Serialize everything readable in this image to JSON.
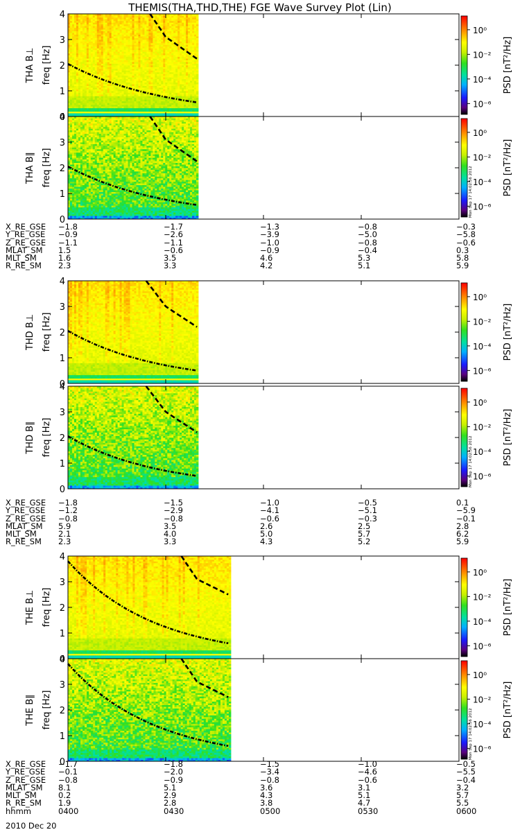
{
  "title": "THEMIS(THA,THD,THE) FGE Wave Survey Plot (Lin)",
  "colorbar": {
    "label": "PSD [nT²/Hz]",
    "ticks": [
      "10⁰",
      "10⁻²",
      "10⁻⁴",
      "10⁻⁶"
    ],
    "stamp": "Mon Sep 17 14:02:56 2012"
  },
  "chart_data": [
    {
      "type": "heatmap",
      "probe": "THA",
      "component": "B⊥",
      "ylabel": "THA B⊥",
      "ylabel2": "freq [Hz]",
      "ylim": [
        0,
        4
      ],
      "yticks": [
        "0",
        "1",
        "2",
        "3",
        "4"
      ],
      "data_end_time": "0440",
      "curves": [
        {
          "style": "dashed",
          "x": [
            0.21,
            0.25,
            0.33
          ],
          "y": [
            4,
            3.1,
            2.25
          ]
        },
        {
          "style": "dashdot",
          "x": [
            0,
            0.33
          ],
          "y": [
            2.05,
            0.55
          ]
        }
      ]
    },
    {
      "type": "heatmap",
      "probe": "THA",
      "component": "B∥",
      "ylabel": "THA B∥",
      "ylabel2": "freq [Hz]",
      "ylim": [
        0,
        4
      ],
      "yticks": [
        "0",
        "1",
        "2",
        "3",
        "4"
      ],
      "data_end_time": "0440",
      "curves": [
        {
          "style": "dashed",
          "x": [
            0.21,
            0.25,
            0.33
          ],
          "y": [
            4,
            3.1,
            2.25
          ]
        },
        {
          "style": "dashdot",
          "x": [
            0,
            0.33
          ],
          "y": [
            2.05,
            0.55
          ]
        }
      ]
    },
    {
      "type": "heatmap",
      "probe": "THD",
      "component": "B⊥",
      "ylabel": "THD B⊥",
      "ylabel2": "freq [Hz]",
      "ylim": [
        0,
        4
      ],
      "yticks": [
        "0",
        "1",
        "2",
        "3",
        "4"
      ],
      "data_end_time": "0440",
      "curves": [
        {
          "style": "dashed",
          "x": [
            0.2,
            0.25,
            0.33
          ],
          "y": [
            4,
            3.0,
            2.2
          ]
        },
        {
          "style": "dashdot",
          "x": [
            0,
            0.33
          ],
          "y": [
            2.05,
            0.5
          ]
        }
      ]
    },
    {
      "type": "heatmap",
      "probe": "THD",
      "component": "B∥",
      "ylabel": "THD B∥",
      "ylabel2": "freq [Hz]",
      "ylim": [
        0,
        4
      ],
      "yticks": [
        "0",
        "1",
        "2",
        "3",
        "4"
      ],
      "data_end_time": "0440",
      "curves": [
        {
          "style": "dashed",
          "x": [
            0.2,
            0.25,
            0.33
          ],
          "y": [
            4,
            3.0,
            2.2
          ]
        },
        {
          "style": "dashdot",
          "x": [
            0,
            0.33
          ],
          "y": [
            2.05,
            0.5
          ]
        }
      ]
    },
    {
      "type": "heatmap",
      "probe": "THE",
      "component": "B⊥",
      "ylabel": "THE B⊥",
      "ylabel2": "freq [Hz]",
      "ylim": [
        0,
        4
      ],
      "yticks": [
        "0",
        "1",
        "2",
        "3",
        "4"
      ],
      "data_end_time": "0450",
      "curves": [
        {
          "style": "dashed",
          "x": [
            0.29,
            0.33,
            0.41
          ],
          "y": [
            4,
            3.1,
            2.5
          ]
        },
        {
          "style": "dashdot",
          "x": [
            0,
            0.41
          ],
          "y": [
            3.8,
            0.6
          ]
        }
      ]
    },
    {
      "type": "heatmap",
      "probe": "THE",
      "component": "B∥",
      "ylabel": "THE B∥",
      "ylabel2": "freq [Hz]",
      "ylim": [
        0,
        4
      ],
      "yticks": [
        "0",
        "1",
        "2",
        "3",
        "4"
      ],
      "data_end_time": "0450",
      "curves": [
        {
          "style": "dashed",
          "x": [
            0.29,
            0.33,
            0.41
          ],
          "y": [
            4,
            3.1,
            2.5
          ]
        },
        {
          "style": "dashdot",
          "x": [
            0,
            0.41
          ],
          "y": [
            3.8,
            0.6
          ]
        }
      ]
    }
  ],
  "ephemeris": [
    {
      "rows": [
        {
          "label": "X_RE_GSE",
          "values": [
            "−1.8",
            "−1.7",
            "−1.3",
            "−0.8",
            "−0.3"
          ]
        },
        {
          "label": "Y_RE_GSE",
          "values": [
            "−0.9",
            "−2.6",
            "−3.9",
            "−5.0",
            "−5.8"
          ]
        },
        {
          "label": "Z_RE_GSE",
          "values": [
            "−1.1",
            "−1.1",
            "−1.0",
            "−0.8",
            "−0.6"
          ]
        },
        {
          "label": "MLAT_SM",
          "values": [
            "1.5",
            "−0.6",
            "−0.9",
            "−0.4",
            "0.3"
          ]
        },
        {
          "label": "MLT_SM",
          "values": [
            "1.6",
            "3.5",
            "4.6",
            "5.3",
            "5.8"
          ]
        },
        {
          "label": "R_RE_SM",
          "values": [
            "2.3",
            "3.3",
            "4.2",
            "5.1",
            "5.9"
          ]
        }
      ]
    },
    {
      "rows": [
        {
          "label": "X_RE_GSE",
          "values": [
            "−1.8",
            "−1.5",
            "−1.0",
            "−0.5",
            "0.1"
          ]
        },
        {
          "label": "Y_RE_GSE",
          "values": [
            "−1.2",
            "−2.9",
            "−4.1",
            "−5.1",
            "−5.9"
          ]
        },
        {
          "label": "Z_RE_GSE",
          "values": [
            "−0.8",
            "−0.8",
            "−0.6",
            "−0.3",
            "−0.1"
          ]
        },
        {
          "label": "MLAT_SM",
          "values": [
            "5.9",
            "3.5",
            "2.6",
            "2.5",
            "2.8"
          ]
        },
        {
          "label": "MLT_SM",
          "values": [
            "2.1",
            "4.0",
            "5.0",
            "5.7",
            "6.2"
          ]
        },
        {
          "label": "R_RE_SM",
          "values": [
            "2.3",
            "3.3",
            "4.3",
            "5.2",
            "5.9"
          ]
        }
      ]
    },
    {
      "rows": [
        {
          "label": "X_RE_GSE",
          "values": [
            "−1.7",
            "−1.8",
            "−1.5",
            "−1.0",
            "−0.5"
          ]
        },
        {
          "label": "Y_RE_GSE",
          "values": [
            "−0.1",
            "−2.0",
            "−3.4",
            "−4.6",
            "−5.5"
          ]
        },
        {
          "label": "Z_RE_GSE",
          "values": [
            "−0.8",
            "−0.9",
            "−0.8",
            "−0.6",
            "−0.4"
          ]
        },
        {
          "label": "MLAT_SM",
          "values": [
            "8.1",
            "5.1",
            "3.6",
            "3.1",
            "3.2"
          ]
        },
        {
          "label": "MLT_SM",
          "values": [
            "0.2",
            "2.9",
            "4.3",
            "5.1",
            "5.7"
          ]
        },
        {
          "label": "R_RE_SM",
          "values": [
            "1.9",
            "2.8",
            "3.8",
            "4.7",
            "5.5"
          ]
        },
        {
          "label": "hhmm",
          "values": [
            "0400",
            "0430",
            "0500",
            "0530",
            "0600"
          ]
        }
      ]
    }
  ],
  "date": "2010 Dec 20"
}
